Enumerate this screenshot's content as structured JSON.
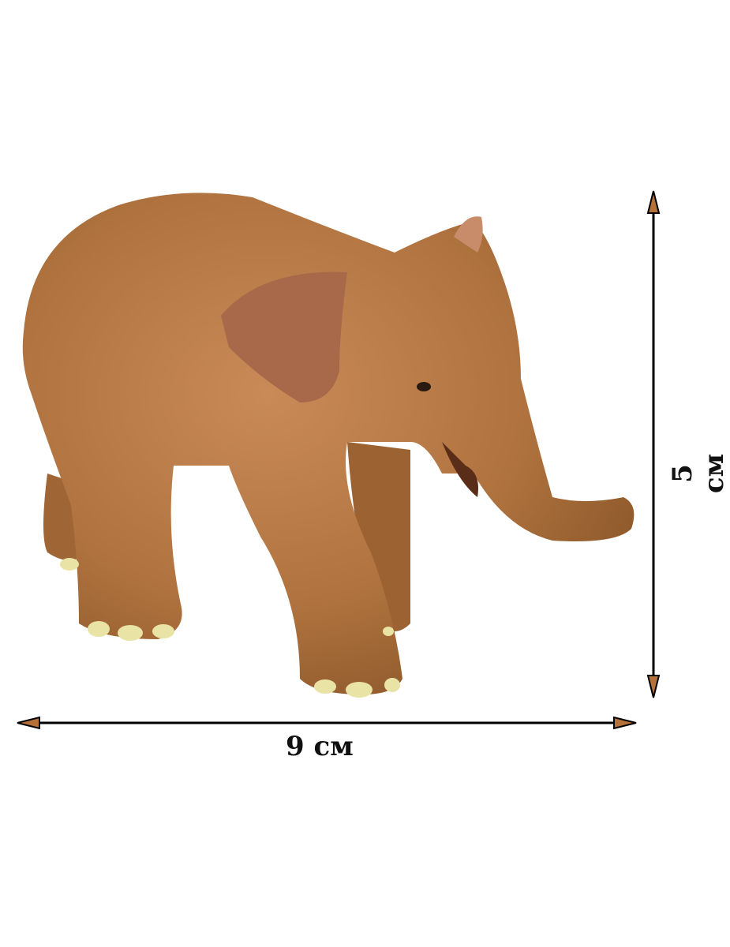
{
  "dimensions": {
    "width_label": "9 см",
    "height_label": "5 см"
  },
  "colors": {
    "arrow_fill": "#b5713a",
    "arrow_line": "#000000",
    "elephant_body": "#b87a4b",
    "toenails": "#e9e3a6"
  },
  "subject": "elephant-figurine"
}
